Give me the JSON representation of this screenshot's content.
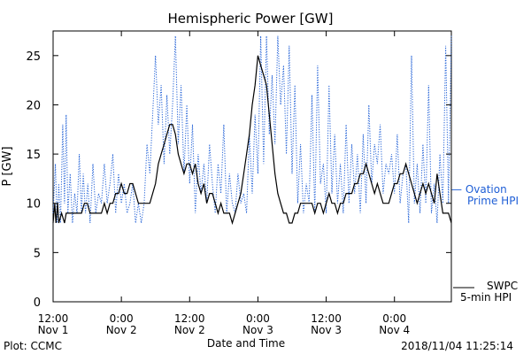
{
  "chart_data": {
    "type": "line",
    "title": "Hemispheric Power [GW]",
    "ylabel": "P [GW]",
    "xlabel": "Date and Time",
    "ylim": [
      0,
      27.5
    ],
    "xlim_hours": [
      0,
      70
    ],
    "y_ticks": [
      "0",
      "5",
      "10",
      "15",
      "20",
      "25"
    ],
    "x_ticks": [
      {
        "line1": "12:00",
        "line2": "Nov 1"
      },
      {
        "line1": "0:00",
        "line2": "Nov 2"
      },
      {
        "line1": "12:00",
        "line2": "Nov 2"
      },
      {
        "line1": "0:00",
        "line2": "Nov 3"
      },
      {
        "line1": "12:00",
        "line2": "Nov 3"
      },
      {
        "line1": "0:00",
        "line2": "Nov 4"
      }
    ],
    "x_tick_hours": [
      0,
      12,
      24,
      36,
      48,
      60
    ],
    "series": [
      {
        "legend_line1": "— Ovation",
        "legend_line2": "Prime HPI",
        "color": "#1f5fd6",
        "style": "dotted",
        "points": [
          [
            0,
            9
          ],
          [
            0.4,
            14
          ],
          [
            0.7,
            8
          ],
          [
            1.0,
            12
          ],
          [
            1.3,
            8
          ],
          [
            1.7,
            18
          ],
          [
            2.0,
            10
          ],
          [
            2.3,
            19
          ],
          [
            2.6,
            9
          ],
          [
            3.0,
            13
          ],
          [
            3.4,
            8
          ],
          [
            3.8,
            11
          ],
          [
            4.2,
            9
          ],
          [
            4.6,
            15
          ],
          [
            5.0,
            9
          ],
          [
            5.3,
            13
          ],
          [
            5.7,
            9
          ],
          [
            6.1,
            12
          ],
          [
            6.5,
            8
          ],
          [
            7.0,
            14
          ],
          [
            7.5,
            9
          ],
          [
            8.0,
            11
          ],
          [
            8.5,
            10
          ],
          [
            9.0,
            14
          ],
          [
            9.5,
            10
          ],
          [
            10.0,
            12
          ],
          [
            10.5,
            15
          ],
          [
            11.0,
            9
          ],
          [
            11.5,
            13
          ],
          [
            12.0,
            10
          ],
          [
            12.5,
            12
          ],
          [
            13.0,
            9
          ],
          [
            13.5,
            10
          ],
          [
            14.0,
            12
          ],
          [
            14.5,
            8
          ],
          [
            15.0,
            10
          ],
          [
            15.5,
            8
          ],
          [
            16.0,
            10
          ],
          [
            16.5,
            16
          ],
          [
            17.0,
            13
          ],
          [
            17.5,
            19
          ],
          [
            18.0,
            25
          ],
          [
            18.5,
            18
          ],
          [
            19.0,
            22
          ],
          [
            19.5,
            14
          ],
          [
            20.0,
            21
          ],
          [
            20.5,
            15
          ],
          [
            21.0,
            20
          ],
          [
            21.5,
            27
          ],
          [
            22.0,
            16
          ],
          [
            22.5,
            22
          ],
          [
            23.0,
            13
          ],
          [
            23.5,
            20
          ],
          [
            24.0,
            12
          ],
          [
            24.5,
            18
          ],
          [
            25.0,
            9
          ],
          [
            25.5,
            15
          ],
          [
            26.0,
            11
          ],
          [
            26.5,
            14
          ],
          [
            27.0,
            10
          ],
          [
            27.5,
            16
          ],
          [
            28.0,
            12
          ],
          [
            28.5,
            9
          ],
          [
            29.0,
            14
          ],
          [
            29.5,
            11
          ],
          [
            30.0,
            18
          ],
          [
            30.5,
            9
          ],
          [
            31.0,
            13
          ],
          [
            31.5,
            10
          ],
          [
            32.0,
            9
          ],
          [
            32.5,
            13
          ],
          [
            33.0,
            10
          ],
          [
            33.5,
            11
          ],
          [
            34.0,
            9
          ],
          [
            34.5,
            17
          ],
          [
            35.0,
            11
          ],
          [
            35.5,
            19
          ],
          [
            36.0,
            13
          ],
          [
            36.5,
            27
          ],
          [
            37.0,
            14
          ],
          [
            37.5,
            27
          ],
          [
            38.0,
            17
          ],
          [
            38.5,
            23
          ],
          [
            39.0,
            16
          ],
          [
            39.5,
            27
          ],
          [
            40.0,
            20
          ],
          [
            40.5,
            24
          ],
          [
            41.0,
            15
          ],
          [
            41.5,
            26
          ],
          [
            42.0,
            13
          ],
          [
            42.5,
            22
          ],
          [
            43.0,
            10
          ],
          [
            43.5,
            16
          ],
          [
            44.0,
            9
          ],
          [
            44.5,
            12
          ],
          [
            45.0,
            10
          ],
          [
            45.5,
            21
          ],
          [
            46.0,
            9
          ],
          [
            46.5,
            24
          ],
          [
            47.0,
            12
          ],
          [
            47.5,
            14
          ],
          [
            48.0,
            9
          ],
          [
            48.5,
            22
          ],
          [
            49.0,
            11
          ],
          [
            49.5,
            17
          ],
          [
            50.0,
            10
          ],
          [
            50.5,
            14
          ],
          [
            51.0,
            9
          ],
          [
            51.5,
            18
          ],
          [
            52.0,
            10
          ],
          [
            52.5,
            16
          ],
          [
            53.0,
            11
          ],
          [
            53.5,
            15
          ],
          [
            54.0,
            9
          ],
          [
            54.5,
            17
          ],
          [
            55.0,
            10
          ],
          [
            55.5,
            20
          ],
          [
            56.0,
            12
          ],
          [
            56.5,
            16
          ],
          [
            57.0,
            14
          ],
          [
            57.5,
            18
          ],
          [
            58.0,
            11
          ],
          [
            58.5,
            14
          ],
          [
            59.0,
            13
          ],
          [
            59.5,
            15
          ],
          [
            60.0,
            11
          ],
          [
            60.5,
            17
          ],
          [
            61.0,
            10
          ],
          [
            61.5,
            13
          ],
          [
            62.0,
            14
          ],
          [
            62.5,
            8
          ],
          [
            63.0,
            25
          ],
          [
            63.5,
            10
          ],
          [
            64.0,
            14
          ],
          [
            64.5,
            9
          ],
          [
            65.0,
            16
          ],
          [
            65.5,
            10
          ],
          [
            66.0,
            22
          ],
          [
            66.5,
            9
          ],
          [
            67.0,
            12
          ],
          [
            67.5,
            8
          ],
          [
            68.0,
            15
          ],
          [
            68.5,
            10
          ],
          [
            69.0,
            26
          ],
          [
            69.5,
            10
          ],
          [
            70.0,
            27
          ]
        ]
      },
      {
        "legend_line1": "SWPC",
        "legend_line2": "5-min HPI",
        "color": "#000000",
        "style": "solid",
        "points": [
          [
            0,
            8
          ],
          [
            0.3,
            10
          ],
          [
            0.5,
            8
          ],
          [
            0.8,
            10
          ],
          [
            1.0,
            8
          ],
          [
            1.5,
            9
          ],
          [
            2.0,
            8
          ],
          [
            2.3,
            9
          ],
          [
            3.0,
            9
          ],
          [
            4.0,
            9
          ],
          [
            5.0,
            9
          ],
          [
            5.5,
            10
          ],
          [
            6.0,
            10
          ],
          [
            6.5,
            9
          ],
          [
            7.0,
            9
          ],
          [
            8.0,
            9
          ],
          [
            8.5,
            9
          ],
          [
            9.0,
            10
          ],
          [
            9.5,
            9
          ],
          [
            10.0,
            10
          ],
          [
            10.5,
            10
          ],
          [
            11.0,
            11
          ],
          [
            11.5,
            11
          ],
          [
            12.0,
            12
          ],
          [
            12.5,
            11
          ],
          [
            13.0,
            11
          ],
          [
            13.5,
            12
          ],
          [
            14.0,
            12
          ],
          [
            14.5,
            11
          ],
          [
            15.0,
            10
          ],
          [
            16.0,
            10
          ],
          [
            16.5,
            10
          ],
          [
            17.0,
            10
          ],
          [
            17.5,
            11
          ],
          [
            18.0,
            12
          ],
          [
            18.5,
            14
          ],
          [
            19.0,
            15
          ],
          [
            19.5,
            16
          ],
          [
            20.0,
            17
          ],
          [
            20.5,
            18
          ],
          [
            21.0,
            18
          ],
          [
            21.5,
            17
          ],
          [
            22.0,
            15
          ],
          [
            22.5,
            14
          ],
          [
            23.0,
            13
          ],
          [
            23.5,
            14
          ],
          [
            24.0,
            14
          ],
          [
            24.5,
            13
          ],
          [
            25.0,
            14
          ],
          [
            25.5,
            12
          ],
          [
            26.0,
            11
          ],
          [
            26.5,
            12
          ],
          [
            27.0,
            10
          ],
          [
            27.5,
            11
          ],
          [
            28.0,
            11
          ],
          [
            28.5,
            10
          ],
          [
            29.0,
            9
          ],
          [
            29.5,
            10
          ],
          [
            30.0,
            9
          ],
          [
            30.5,
            9
          ],
          [
            31.0,
            9
          ],
          [
            31.5,
            8
          ],
          [
            32.0,
            9
          ],
          [
            32.5,
            10
          ],
          [
            33.0,
            11
          ],
          [
            33.5,
            13
          ],
          [
            34.0,
            15
          ],
          [
            34.5,
            17
          ],
          [
            35.0,
            20
          ],
          [
            35.5,
            22
          ],
          [
            36.0,
            25
          ],
          [
            36.5,
            24
          ],
          [
            37.0,
            23
          ],
          [
            37.5,
            22
          ],
          [
            38.0,
            19
          ],
          [
            38.5,
            16
          ],
          [
            39.0,
            13
          ],
          [
            39.5,
            11
          ],
          [
            40.0,
            10
          ],
          [
            40.5,
            9
          ],
          [
            41.0,
            9
          ],
          [
            41.5,
            8
          ],
          [
            42.0,
            8
          ],
          [
            42.5,
            9
          ],
          [
            43.0,
            9
          ],
          [
            43.5,
            10
          ],
          [
            44.0,
            10
          ],
          [
            44.5,
            10
          ],
          [
            45.0,
            10
          ],
          [
            45.5,
            10
          ],
          [
            46.0,
            9
          ],
          [
            46.5,
            10
          ],
          [
            47.0,
            10
          ],
          [
            47.5,
            9
          ],
          [
            48.0,
            10
          ],
          [
            48.5,
            11
          ],
          [
            49.0,
            10
          ],
          [
            49.5,
            10
          ],
          [
            50.0,
            9
          ],
          [
            50.5,
            10
          ],
          [
            51.0,
            10
          ],
          [
            51.5,
            11
          ],
          [
            52.0,
            11
          ],
          [
            52.5,
            11
          ],
          [
            53.0,
            12
          ],
          [
            53.5,
            12
          ],
          [
            54.0,
            13
          ],
          [
            54.5,
            13
          ],
          [
            55.0,
            14
          ],
          [
            55.5,
            13
          ],
          [
            56.0,
            12
          ],
          [
            56.5,
            11
          ],
          [
            57.0,
            12
          ],
          [
            57.5,
            11
          ],
          [
            58.0,
            10
          ],
          [
            58.5,
            10
          ],
          [
            59.0,
            10
          ],
          [
            59.5,
            11
          ],
          [
            60.0,
            12
          ],
          [
            60.5,
            12
          ],
          [
            61.0,
            13
          ],
          [
            61.5,
            13
          ],
          [
            62.0,
            14
          ],
          [
            62.5,
            13
          ],
          [
            63.0,
            12
          ],
          [
            63.5,
            11
          ],
          [
            64.0,
            10
          ],
          [
            64.5,
            11
          ],
          [
            65.0,
            12
          ],
          [
            65.5,
            11
          ],
          [
            66.0,
            12
          ],
          [
            66.5,
            11
          ],
          [
            67.0,
            10
          ],
          [
            67.5,
            13
          ],
          [
            68.0,
            11
          ],
          [
            68.5,
            9
          ],
          [
            69.0,
            9
          ],
          [
            69.5,
            9
          ],
          [
            70.0,
            8
          ]
        ]
      }
    ],
    "grid": false,
    "legend_position": "right"
  },
  "footer": {
    "plot_credit": "Plot: CCMC",
    "timestamp": "2018/11/04 11:25:14"
  }
}
